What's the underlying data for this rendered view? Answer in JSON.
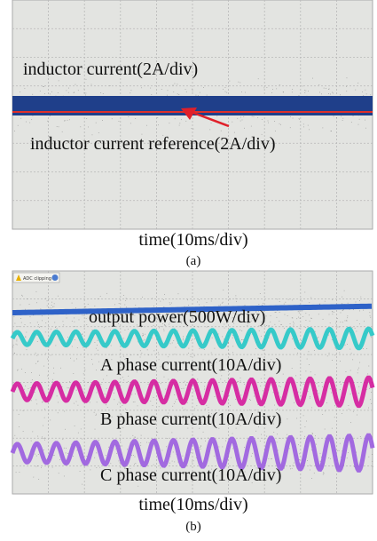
{
  "panel_a": {
    "trace_label": "inductor current(2A/div)",
    "reference_label": "inductor current reference(2A/div)",
    "time_label": "time(10ms/div)",
    "caption": "(a)"
  },
  "panel_b": {
    "badge": "ADC clipping",
    "trace_labels": [
      "output power(500W/div)",
      "A phase current(10A/div)",
      "B phase current(10A/div)",
      "C phase current(10A/div)"
    ],
    "time_label": "time(10ms/div)",
    "caption": "(b)"
  }
}
